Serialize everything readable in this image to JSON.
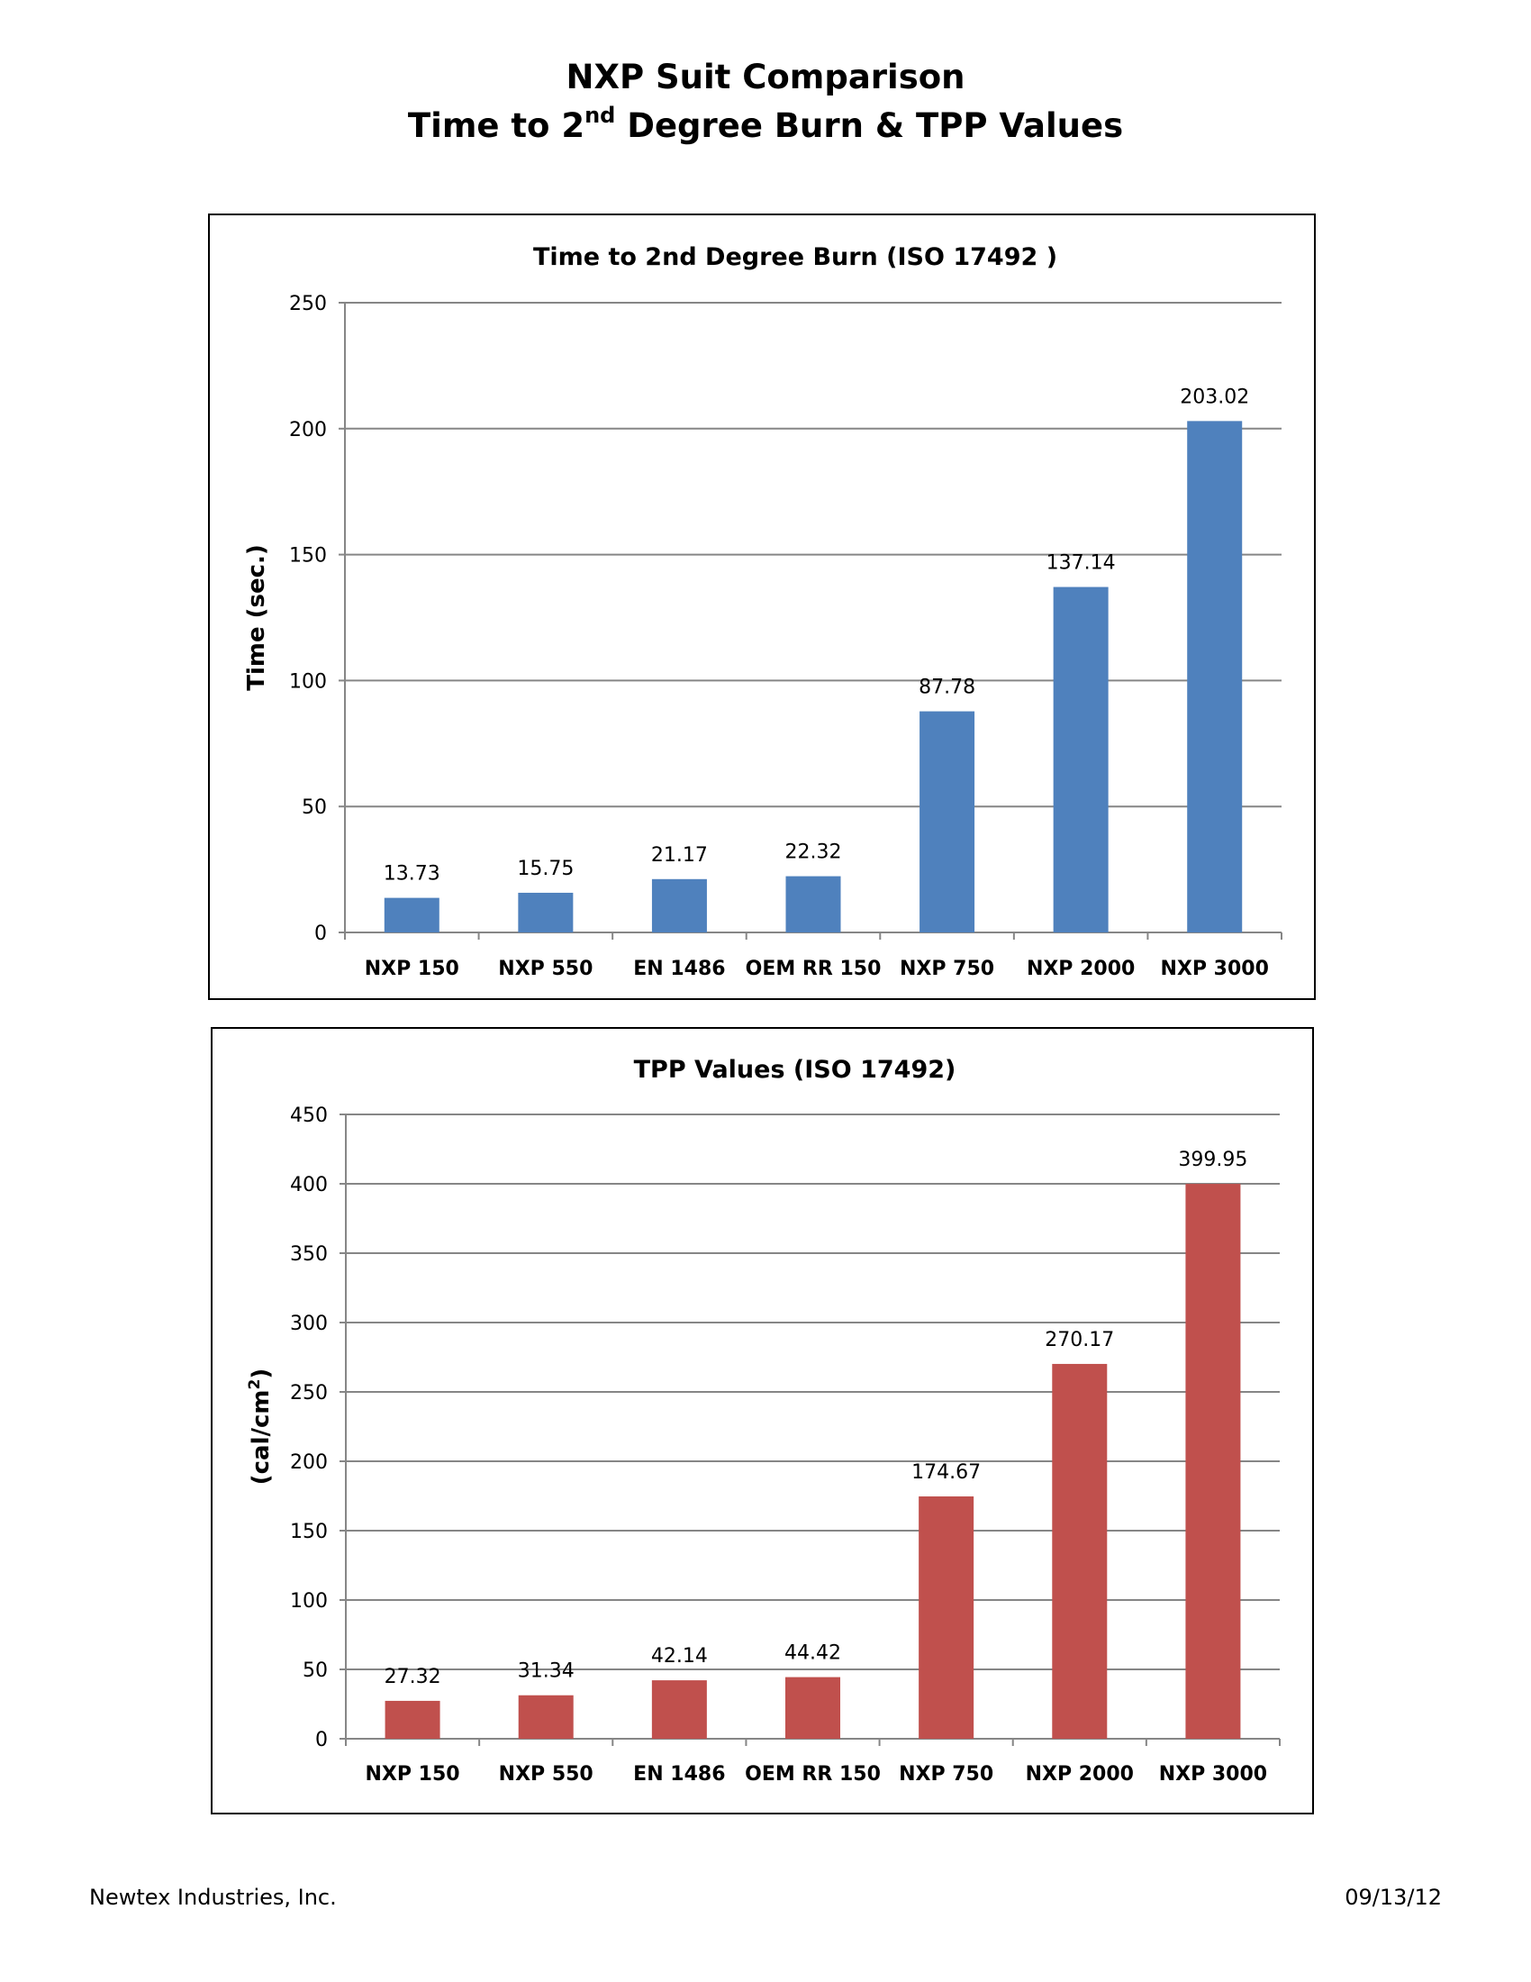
{
  "header": {
    "title_line1": "NXP Suit Comparison",
    "title_line2_pre": "Time to 2",
    "title_line2_sup": "nd",
    "title_line2_post": " Degree Burn & TPP Values"
  },
  "footer": {
    "company": "Newtex Industries, Inc.",
    "date": "09/13/12"
  },
  "chart_data": [
    {
      "type": "bar",
      "title": "Time to 2nd Degree Burn (ISO 17492 )",
      "ylabel": "Time (sec.)",
      "ylabel_sup": "",
      "ylabel_post": "",
      "xlabel": "",
      "categories": [
        "NXP 150",
        "NXP 550",
        "EN 1486",
        "OEM RR 150",
        "NXP 750",
        "NXP 2000",
        "NXP 3000"
      ],
      "values": [
        13.73,
        15.75,
        21.17,
        22.32,
        87.78,
        137.14,
        203.02
      ],
      "data_labels": [
        "13.73",
        "15.75",
        "21.17",
        "22.32",
        "87.78",
        "137.14",
        "203.02"
      ],
      "ylim": [
        0,
        250
      ],
      "yticks": [
        0,
        50,
        100,
        150,
        200,
        250
      ],
      "grid": true,
      "legend": "none",
      "color": "#4F81BD"
    },
    {
      "type": "bar",
      "title": "TPP Values (ISO 17492)",
      "ylabel": "(cal/cm",
      "ylabel_sup": "2",
      "ylabel_post": ")",
      "xlabel": "",
      "categories": [
        "NXP 150",
        "NXP 550",
        "EN 1486",
        "OEM RR 150",
        "NXP 750",
        "NXP 2000",
        "NXP 3000"
      ],
      "values": [
        27.32,
        31.34,
        42.14,
        44.42,
        174.67,
        270.17,
        399.95
      ],
      "data_labels": [
        "27.32",
        "31.34",
        "42.14",
        "44.42",
        "174.67",
        "270.17",
        "399.95"
      ],
      "ylim": [
        0,
        450
      ],
      "yticks": [
        0,
        50,
        100,
        150,
        200,
        250,
        300,
        350,
        400,
        450
      ],
      "grid": true,
      "legend": "none",
      "color": "#C0504D"
    }
  ]
}
